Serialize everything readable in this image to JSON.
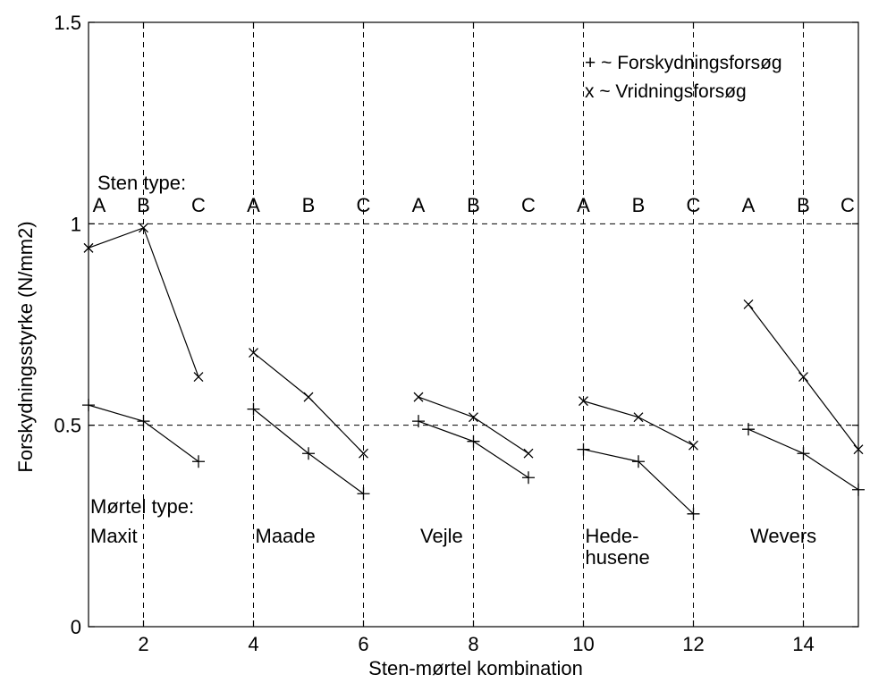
{
  "chart_data": {
    "type": "line",
    "xlabel": "Sten-mørtel kombination",
    "ylabel": "Forskydningsstyrke (N/mm2)",
    "xlim": [
      1,
      15
    ],
    "ylim": [
      0,
      1.5
    ],
    "x_ticks": [
      2,
      4,
      6,
      8,
      10,
      12,
      14
    ],
    "y_ticks": [
      0,
      0.5,
      1,
      1.5
    ],
    "y_tick_labels": [
      "0",
      "0.5",
      "1",
      "1.5"
    ],
    "grid": "dashed, at tick positions",
    "legend": {
      "placement": "top-right",
      "entries": [
        "+ ~ Forskydningsforsøg",
        "x ~ Vridningsforsøg"
      ]
    },
    "series": [
      {
        "marker": "plus",
        "groups": [
          [
            [
              1,
              0.55
            ],
            [
              2,
              0.51
            ],
            [
              3,
              0.41
            ]
          ],
          [
            [
              4,
              0.54
            ],
            [
              5,
              0.43
            ],
            [
              6,
              0.33
            ]
          ],
          [
            [
              7,
              0.51
            ],
            [
              8,
              0.46
            ],
            [
              9,
              0.37
            ]
          ],
          [
            [
              10,
              0.44
            ],
            [
              11,
              0.41
            ],
            [
              12,
              0.28
            ]
          ],
          [
            [
              13,
              0.49
            ],
            [
              14,
              0.43
            ],
            [
              15,
              0.34
            ]
          ]
        ]
      },
      {
        "marker": "x",
        "groups": [
          [
            [
              1,
              0.94
            ],
            [
              2,
              0.99
            ],
            [
              3,
              0.62
            ]
          ],
          [
            [
              4,
              0.68
            ],
            [
              5,
              0.57
            ],
            [
              6,
              0.43
            ]
          ],
          [
            [
              7,
              0.57
            ],
            [
              8,
              0.52
            ],
            [
              9,
              0.43
            ]
          ],
          [
            [
              10,
              0.56
            ],
            [
              11,
              0.52
            ],
            [
              12,
              0.45
            ]
          ],
          [
            [
              13,
              0.8
            ],
            [
              14,
              0.62
            ],
            [
              15,
              0.44
            ]
          ]
        ]
      }
    ],
    "annotations": {
      "sten_title": "Sten type:",
      "sten_labels": [
        {
          "x": 1,
          "text": "A"
        },
        {
          "x": 2,
          "text": "B"
        },
        {
          "x": 3,
          "text": "C"
        },
        {
          "x": 4,
          "text": "A"
        },
        {
          "x": 5,
          "text": "B"
        },
        {
          "x": 6,
          "text": "C"
        },
        {
          "x": 7,
          "text": "A"
        },
        {
          "x": 8,
          "text": "B"
        },
        {
          "x": 9,
          "text": "C"
        },
        {
          "x": 10,
          "text": "A"
        },
        {
          "x": 11,
          "text": "B"
        },
        {
          "x": 12,
          "text": "C"
        },
        {
          "x": 13,
          "text": "A"
        },
        {
          "x": 14,
          "text": "B"
        },
        {
          "x": 15,
          "text": "C"
        }
      ],
      "mortel_title": "Mørtel type:",
      "mortel_labels": [
        {
          "x": 1,
          "lines": [
            "Maxit"
          ]
        },
        {
          "x": 4,
          "lines": [
            "Maade"
          ]
        },
        {
          "x": 7,
          "lines": [
            "Vejle"
          ]
        },
        {
          "x": 10,
          "lines": [
            "Hede-",
            "husene"
          ]
        },
        {
          "x": 13,
          "lines": [
            "Wevers"
          ]
        }
      ]
    }
  }
}
